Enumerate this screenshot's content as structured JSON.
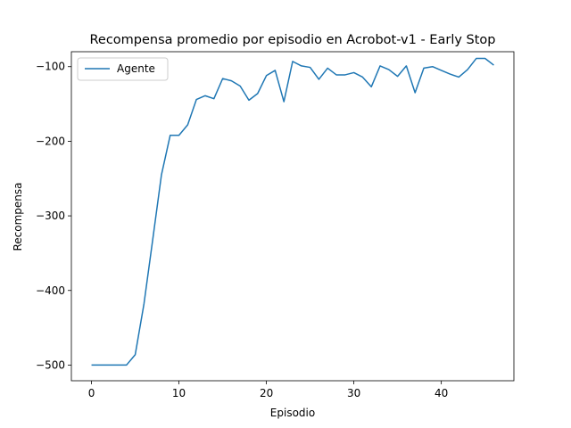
{
  "chart_data": {
    "type": "line",
    "title": "Recompensa promedio por episodio en Acrobot-v1 - Early Stop",
    "xlabel": "Episodio",
    "ylabel": "Recompensa",
    "xlim": [
      -2.3,
      48.3
    ],
    "ylim": [
      -521,
      -80
    ],
    "xticks": [
      0,
      10,
      20,
      30,
      40
    ],
    "yticks": [
      -500,
      -400,
      -300,
      -200,
      -100
    ],
    "ytick_labels": [
      "−500",
      "−400",
      "−300",
      "−200",
      "−100"
    ],
    "grid": false,
    "legend_position": "top-left",
    "series": [
      {
        "name": "Agente",
        "color": "#1f77b4",
        "x": [
          0,
          1,
          2,
          3,
          4,
          5,
          6,
          7,
          8,
          9,
          10,
          11,
          12,
          13,
          14,
          15,
          16,
          17,
          18,
          19,
          20,
          21,
          22,
          23,
          24,
          25,
          26,
          27,
          28,
          29,
          30,
          31,
          32,
          33,
          34,
          35,
          36,
          37,
          38,
          39,
          40,
          41,
          42,
          43,
          44,
          45,
          46
        ],
        "y": [
          -500,
          -500,
          -500,
          -500,
          -500,
          -486,
          -418,
          -332,
          -245,
          -192,
          -192,
          -178,
          -144,
          -139,
          -143,
          -116,
          -119,
          -126,
          -145,
          -136,
          -112,
          -105,
          -147,
          -93,
          -99,
          -101,
          -117,
          -102,
          -111,
          -111,
          -108,
          -114,
          -127,
          -99,
          -104,
          -113,
          -99,
          -135,
          -102,
          -100,
          -105,
          -110,
          -114,
          -104,
          -89,
          -89,
          -98
        ]
      }
    ]
  }
}
